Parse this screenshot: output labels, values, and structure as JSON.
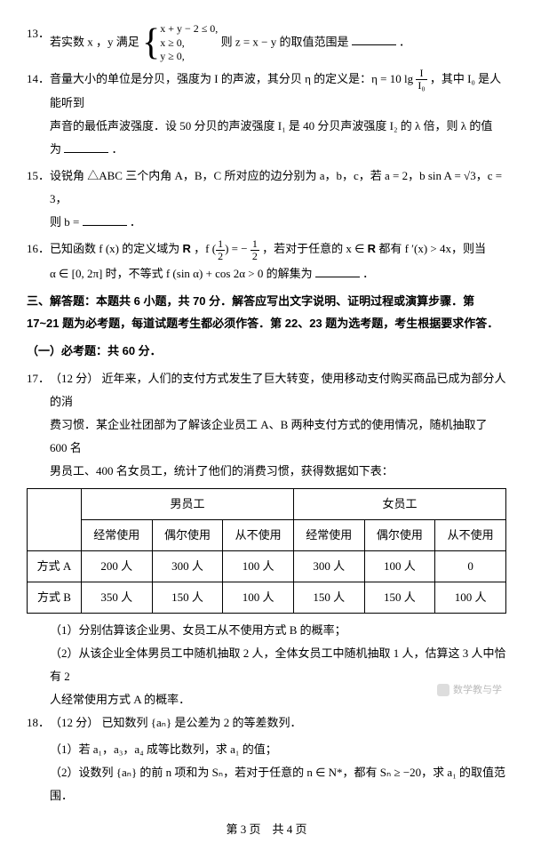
{
  "q13": {
    "num": "13．",
    "pre": "若实数 x ，y 满足 ",
    "sys1": "x + y − 2 ≤ 0,",
    "sys2": "x ≥ 0,",
    "sys3": "y ≥ 0,",
    "post": " 则 z = x − y 的取值范围是",
    "end": "．"
  },
  "q14": {
    "num": "14．",
    "l1a": "音量大小的单位是分贝，强度为 I 的声波，其分贝 η 的定义是：η = 10 lg ",
    "frac_n": "I",
    "frac_d": "I₀",
    "l1b": "，其中 I₀ 是人能听到",
    "l2": "声音的最低声波强度．设 50 分贝的声波强度 I₁ 是 40 分贝声波强度 I₂ 的 λ 倍，则 λ 的值",
    "l3a": "为",
    "l3b": "．"
  },
  "q15": {
    "num": "15．",
    "l1": "设锐角 △ABC 三个内角 A，B，C 所对应的边分别为 a，b，c，若 a = 2，b sin A = √3，c = 3，",
    "l2a": "则 b = ",
    "l2b": "．"
  },
  "q16": {
    "num": "16．",
    "l1a": "已知函数 f (x) 的定义域为 ",
    "R": "R",
    "l1b": "，f ",
    "fr1n": "1",
    "fr1d": "2",
    "l1c": " = − ",
    "fr2n": "1",
    "fr2d": "2",
    "l1d": "，若对于任意的 x ∈ ",
    "l1e": " 都有 f ′(x) > 4x，则当",
    "l2a": "α ∈ [0, 2π] 时，不等式 f (sin α) + cos 2α > 0 的解集为",
    "l2b": "．"
  },
  "sec3": "三、解答题：本题共 6 小题，共 70 分．解答应写出文字说明、证明过程或演算步骤．第 17~21 题为必考题，每道试题考生都必须作答．第 22、23 题为选考题，考生根据要求作答．",
  "sec3a": "（一）必考题：共 60 分．",
  "q17": {
    "num": "17．",
    "pts": "（12 分）",
    "l1": "近年来，人们的支付方式发生了巨大转变，使用移动支付购买商品已成为部分人的消",
    "l2": "费习惯．某企业社团部为了解该企业员工 A、B 两种支付方式的使用情况，随机抽取了 600 名",
    "l3": "男员工、400 名女员工，统计了他们的消费习惯，获得数据如下表：",
    "table": {
      "h_male": "男员工",
      "h_female": "女员工",
      "c1": "经常使用",
      "c2": "偶尔使用",
      "c3": "从不使用",
      "rA": "方式 A",
      "rB": "方式 B",
      "a": [
        "200 人",
        "300 人",
        "100 人",
        "300 人",
        "100 人",
        "0"
      ],
      "b": [
        "350 人",
        "150 人",
        "100 人",
        "150 人",
        "150 人",
        "100 人"
      ]
    },
    "sub1": "（1）分别估算该企业男、女员工从不使用方式 B 的概率；",
    "sub2a": "（2）从该企业全体男员工中随机抽取 2 人，全体女员工中随机抽取 1 人，估算这 3 人中恰有 2",
    "sub2b": "人经常使用方式 A 的概率．"
  },
  "q18": {
    "num": "18．",
    "pts": "（12 分）",
    "l1": "已知数列 {aₙ} 是公差为 2 的等差数列．",
    "sub1": "（1）若 a₁，a₃，a₄ 成等比数列，求 a₁ 的值；",
    "sub2": "（2）设数列 {aₙ} 的前 n 项和为 Sₙ，若对于任意的 n ∈ N*，都有 Sₙ ≥ −20，求 a₁ 的取值范围．"
  },
  "footer": "第 3 页　共 4 页",
  "watermark": "数学教与学"
}
